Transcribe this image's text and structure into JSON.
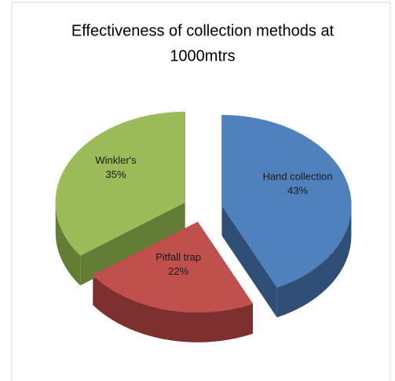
{
  "chart_data": {
    "type": "pie",
    "title_lines": [
      "Effectiveness of collection methods at",
      "1000mtrs"
    ],
    "categories": [
      "Hand collection",
      "Pitfall trap",
      "Winkler's"
    ],
    "values": [
      43,
      22,
      35
    ],
    "value_labels": [
      "43%",
      "22%",
      "35%"
    ],
    "colors": [
      "#4f81bd",
      "#c0504d",
      "#9bbb59"
    ],
    "side_colors": [
      "#2f4f76",
      "#7d302e",
      "#647d35"
    ]
  }
}
